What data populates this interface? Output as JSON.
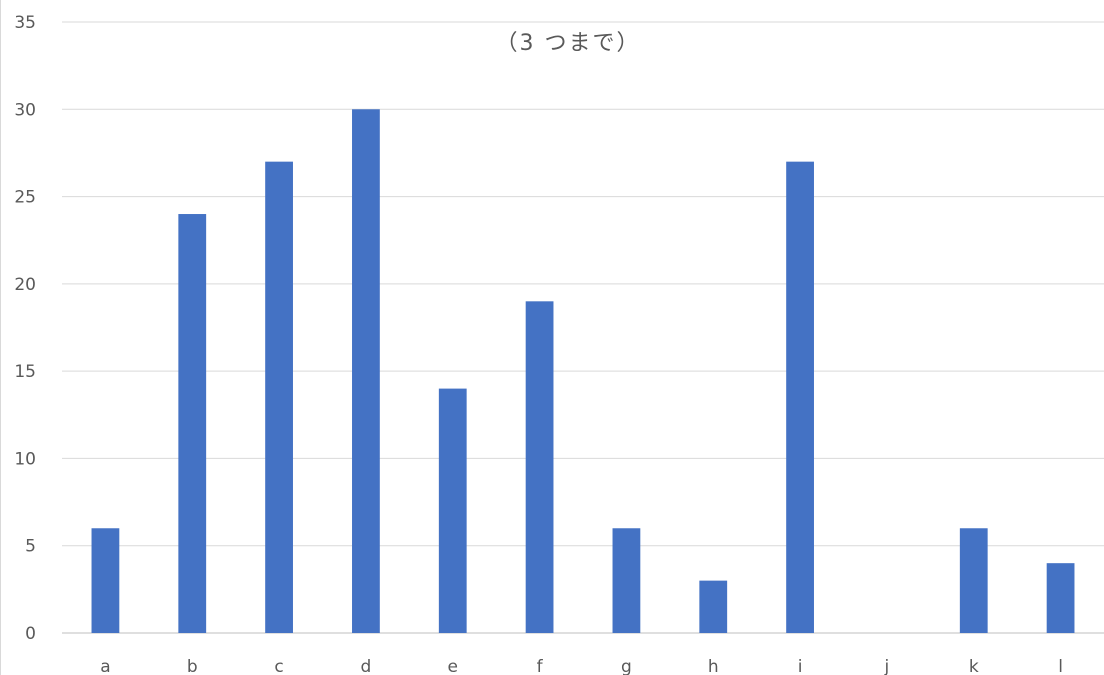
{
  "chart_data": {
    "type": "bar",
    "title": "",
    "subtitle": "（3 つまで）",
    "xlabel": "",
    "ylabel": "",
    "categories": [
      "a",
      "b",
      "c",
      "d",
      "e",
      "f",
      "g",
      "h",
      "i",
      "j",
      "k",
      "l"
    ],
    "values": [
      6,
      24,
      27,
      30,
      14,
      19,
      6,
      3,
      27,
      0,
      6,
      4
    ],
    "ylim": [
      0,
      35
    ],
    "yticks": [
      0,
      5,
      10,
      15,
      20,
      25,
      30,
      35
    ],
    "grid": true,
    "legend": "none",
    "colors": {
      "bar": "#4472c4",
      "grid": "#d9d9d9",
      "text": "#595959"
    }
  }
}
